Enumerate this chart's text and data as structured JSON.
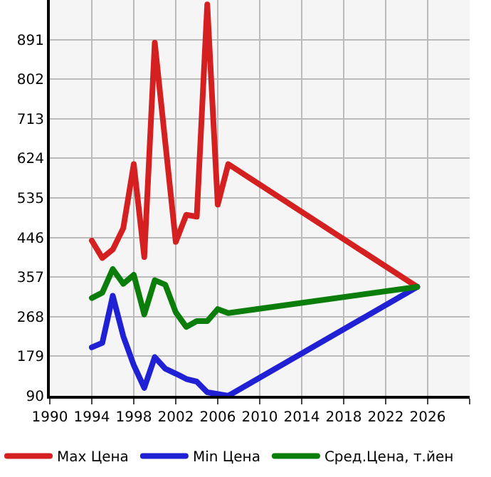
{
  "chart_data": {
    "type": "line",
    "xlim": [
      1990,
      2030
    ],
    "xticks": [
      1990,
      1994,
      1998,
      2002,
      2006,
      2010,
      2014,
      2018,
      2022,
      2026,
      {
        "value": 2030,
        "label": null
      }
    ],
    "ylim": [
      90,
      980
    ],
    "yticks": [
      90,
      179,
      268,
      357,
      446,
      535,
      624,
      713,
      802,
      891
    ],
    "grid": true,
    "legend": "bottom",
    "marker": "none",
    "line_style": "solid",
    "series": [
      {
        "name": "Max Цена",
        "color": "#d42020",
        "x": [
          1994,
          1995,
          1996,
          1997,
          1998,
          1999,
          2000,
          2002,
          2003,
          2004,
          2005,
          2006,
          2007,
          2025
        ],
        "values": [
          439,
          400,
          419,
          467,
          611,
          402,
          884,
          436,
          497,
          493,
          970,
          520,
          611,
          335
        ]
      },
      {
        "name": "Min Цена",
        "color": "#2020d4",
        "x": [
          1994,
          1995,
          1996,
          1997,
          1998,
          1999,
          2000,
          2001,
          2002,
          2003,
          2004,
          2005,
          2006,
          2007,
          2025
        ],
        "values": [
          199,
          209,
          315,
          224,
          159,
          108,
          177,
          151,
          140,
          128,
          122,
          98,
          94,
          90,
          335
        ]
      },
      {
        "name": "Сред.Цена, т.йен",
        "color": "#0a7d0a",
        "x": [
          1994,
          1995,
          1996,
          1997,
          1998,
          1999,
          2000,
          2001,
          2002,
          2003,
          2004,
          2005,
          2006,
          2007,
          2025
        ],
        "values": [
          310,
          322,
          375,
          342,
          362,
          273,
          350,
          340,
          278,
          245,
          258,
          258,
          285,
          276,
          335
        ]
      }
    ]
  }
}
